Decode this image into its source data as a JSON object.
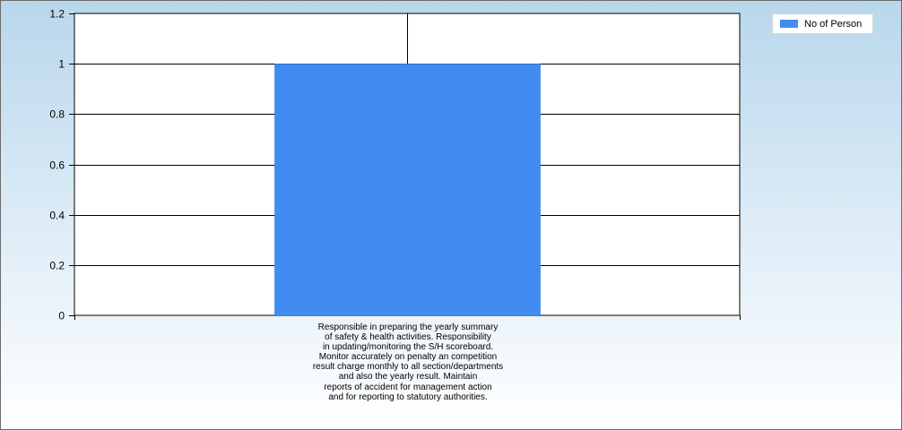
{
  "chart_data": {
    "type": "bar",
    "categories": [
      "Responsible in preparing the yearly summary of safety & health activities. Responsibility in updating/monitoring the S/H scoreboard. Monitor accurately on penalty an competition result charge monthly to all section/departments and also the yearly result. Maintain reports of accident for management action and for reporting to statutory authorities."
    ],
    "category_lines": [
      "Responsible in preparing the yearly summary",
      "of safety & health activities. Responsibility",
      "in updating/monitoring the S/H scoreboard.",
      "Monitor accurately on penalty an competition",
      "result charge monthly to all section/departments",
      "and also the yearly result. Maintain",
      "reports of accident for management action",
      "and for reporting to statutory authorities."
    ],
    "series": [
      {
        "name": "No of Person",
        "values": [
          1
        ],
        "color": "#418cf0"
      }
    ],
    "ylim": [
      0,
      1.2
    ],
    "yticks": [
      "0",
      "0.2",
      "0.4",
      "0.6",
      "0.8",
      "1",
      "1.2"
    ],
    "grid": true,
    "legend_position": "top-right",
    "xlabel": "",
    "ylabel": "",
    "title": ""
  }
}
